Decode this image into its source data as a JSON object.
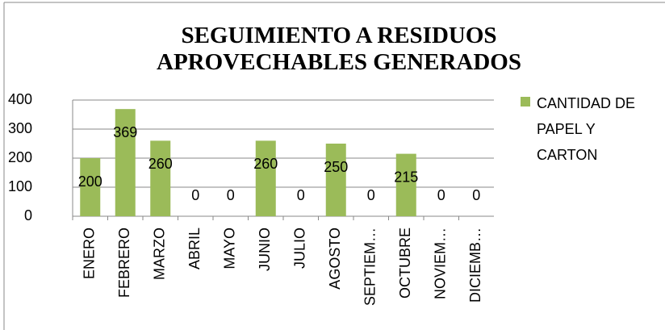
{
  "chart_data": {
    "type": "bar",
    "title": "SEGUIMIENTO A RESIDUOS APROVECHABLES GENERADOS",
    "categories": [
      "ENERO",
      "FEBRERO",
      "MARZO",
      "ABRIL",
      "MAYO",
      "JUNIO",
      "JULIO",
      "AGOSTO",
      "SEPTIEM…",
      "OCTUBRE",
      "NOVIEM…",
      "DICIEMB…"
    ],
    "series": [
      {
        "name": "CANTIDAD DE PAPEL Y CARTON",
        "color": "#9bbb59",
        "values": [
          200,
          369,
          260,
          0,
          0,
          260,
          0,
          250,
          0,
          215,
          0,
          0
        ]
      }
    ],
    "ylim": [
      0,
      400
    ],
    "yticks": [
      0,
      100,
      200,
      300,
      400
    ],
    "grid": true,
    "legend": "right"
  }
}
